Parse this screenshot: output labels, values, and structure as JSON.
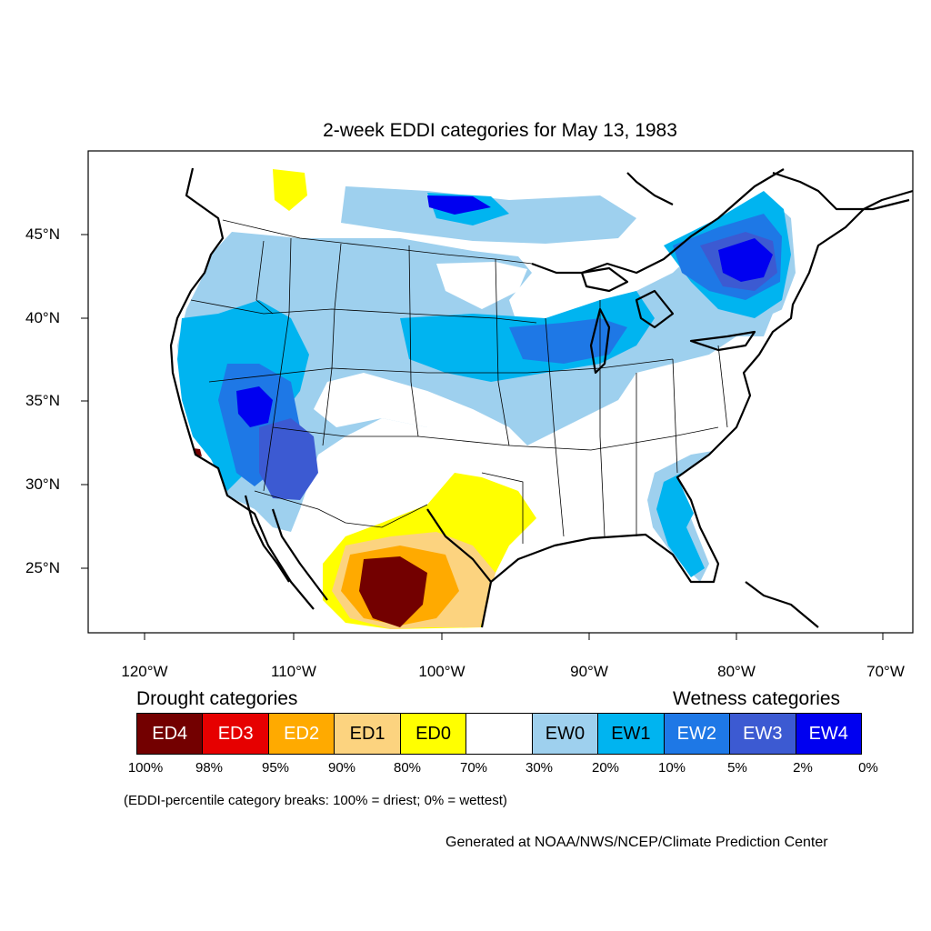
{
  "title": "2-week EDDI categories for May 13, 1983",
  "lat_labels": [
    "45°N",
    "40°N",
    "35°N",
    "30°N",
    "25°N"
  ],
  "lon_labels": [
    "120°W",
    "110°W",
    "100°W",
    "90°W",
    "80°W",
    "70°W"
  ],
  "legend": {
    "drought_heading": "Drought categories",
    "wetness_heading": "Wetness categories",
    "categories": [
      {
        "label": "ED4",
        "color": "#730000",
        "text_color": "#ffffff"
      },
      {
        "label": "ED3",
        "color": "#e60000",
        "text_color": "#ffffff"
      },
      {
        "label": "ED2",
        "color": "#ffaa00",
        "text_color": "#ffffff"
      },
      {
        "label": "ED1",
        "color": "#fcd37f",
        "text_color": "#000000"
      },
      {
        "label": "ED0",
        "color": "#ffff00",
        "text_color": "#000000"
      },
      {
        "label": "",
        "color": "#ffffff",
        "text_color": "#000000"
      },
      {
        "label": "EW0",
        "color": "#9ed0ee",
        "text_color": "#000000"
      },
      {
        "label": "EW1",
        "color": "#00b4f0",
        "text_color": "#000000"
      },
      {
        "label": "EW2",
        "color": "#1e78e6",
        "text_color": "#ffffff"
      },
      {
        "label": "EW3",
        "color": "#3c5ad2",
        "text_color": "#ffffff"
      },
      {
        "label": "EW4",
        "color": "#0000f0",
        "text_color": "#ffffff"
      }
    ],
    "breaks": [
      "100%",
      "98%",
      "95%",
      "90%",
      "80%",
      "70%",
      "30%",
      "20%",
      "10%",
      "5%",
      "2%",
      "0%"
    ]
  },
  "note": "(EDDI-percentile category breaks: 100% = driest; 0% = wettest)",
  "credit": "Generated at NOAA/NWS/NCEP/Climate Prediction Center"
}
